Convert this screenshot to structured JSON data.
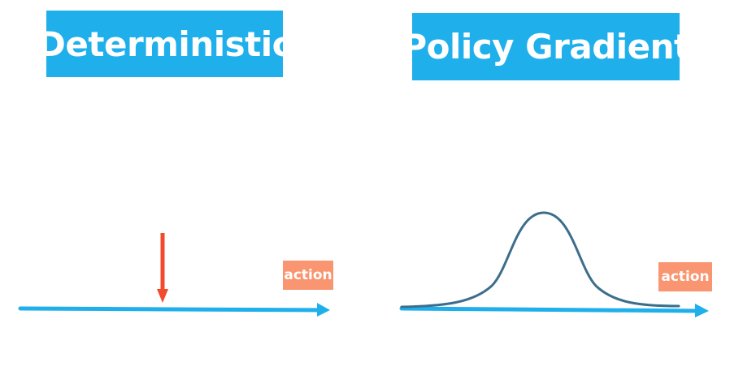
{
  "left_panel": {
    "title": "Deterministic",
    "axis_label": "action"
  },
  "right_panel": {
    "title": "Policy Gradient",
    "axis_label": "action"
  },
  "colors": {
    "title_bg": "#1fb0ec",
    "axis": "#1fb0ec",
    "arrow": "#f24a2c",
    "badge": "#f99570",
    "curve": "#3c6e8c"
  },
  "chart_data": []
}
